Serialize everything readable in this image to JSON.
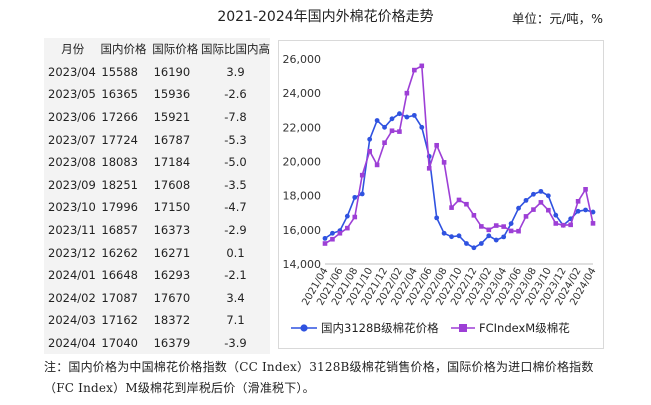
{
  "header": {
    "title": "2021-2024年国内外棉花价格走势",
    "unit": "单位：元/吨，%"
  },
  "table": {
    "headers": [
      "月份",
      "国内价格",
      "国际价格",
      "国际比国内高"
    ],
    "rows": [
      [
        "2023/04",
        "15588",
        "16190",
        "3.9"
      ],
      [
        "2023/05",
        "16365",
        "15936",
        "-2.6"
      ],
      [
        "2023/06",
        "17266",
        "15921",
        "-7.8"
      ],
      [
        "2023/07",
        "17724",
        "16787",
        "-5.3"
      ],
      [
        "2023/08",
        "18083",
        "17184",
        "-5.0"
      ],
      [
        "2023/09",
        "18251",
        "17608",
        "-3.5"
      ],
      [
        "2023/10",
        "17996",
        "17150",
        "-4.7"
      ],
      [
        "2023/11",
        "16857",
        "16373",
        "-2.9"
      ],
      [
        "2023/12",
        "16262",
        "16271",
        "0.1"
      ],
      [
        "2024/01",
        "16648",
        "16293",
        "-2.1"
      ],
      [
        "2024/02",
        "17087",
        "17670",
        "3.4"
      ],
      [
        "2024/03",
        "17162",
        "18372",
        "7.1"
      ],
      [
        "2024/04",
        "17040",
        "16379",
        "-3.9"
      ]
    ]
  },
  "note": "注：国内价格为中国棉花价格指数（CC Index）3128B级棉花销售价格，国际价格为进口棉价格指数（FC Index）M级棉花到岸税后价（滑准税下）。",
  "chart_data": {
    "type": "line",
    "title": "",
    "xlabel": "",
    "ylabel": "",
    "ylim": [
      14000,
      26000
    ],
    "yticks": [
      "14,000",
      "16,000",
      "18,000",
      "20,000",
      "22,000",
      "24,000",
      "26,000"
    ],
    "x": [
      "2021/04",
      "2021/05",
      "2021/06",
      "2021/07",
      "2021/08",
      "2021/09",
      "2021/10",
      "2021/11",
      "2021/12",
      "2022/01",
      "2022/02",
      "2022/03",
      "2022/04",
      "2022/05",
      "2022/06",
      "2022/07",
      "2022/08",
      "2022/09",
      "2022/10",
      "2022/11",
      "2022/12",
      "2023/01",
      "2023/02",
      "2023/03",
      "2023/04",
      "2023/05",
      "2023/06",
      "2023/07",
      "2023/08",
      "2023/09",
      "2023/10",
      "2023/11",
      "2023/12",
      "2024/01",
      "2024/02",
      "2024/03",
      "2024/04"
    ],
    "xticks": [
      "2021/04",
      "2021/06",
      "2021/08",
      "2021/10",
      "2021/12",
      "2022/02",
      "2022/04",
      "2022/06",
      "2022/08",
      "2022/10",
      "2022/12",
      "2023/02",
      "2023/04",
      "2023/06",
      "2023/08",
      "2023/10",
      "2023/12",
      "2024/02",
      "2024/04"
    ],
    "grid": false,
    "legend": "bottom",
    "series": [
      {
        "name": "国内3128B级棉花价格",
        "color": "#2f52e0",
        "marker": "circle",
        "values": [
          15500,
          15800,
          15950,
          16800,
          17900,
          18100,
          21300,
          22400,
          22000,
          22500,
          22800,
          22600,
          22700,
          22000,
          20300,
          16700,
          15800,
          15600,
          15650,
          15200,
          14950,
          15200,
          15650,
          15400,
          15588,
          16365,
          17266,
          17724,
          18083,
          18251,
          17996,
          16857,
          16262,
          16648,
          17087,
          17162,
          17040
        ]
      },
      {
        "name": "FCIndexM级棉花",
        "color": "#9d3fd6",
        "marker": "square",
        "values": [
          15200,
          15450,
          15800,
          16100,
          16750,
          19200,
          20600,
          19800,
          21100,
          21800,
          21750,
          24000,
          25350,
          25600,
          19600,
          20950,
          19950,
          17300,
          17750,
          17500,
          16850,
          16200,
          16000,
          16250,
          16190,
          15936,
          15921,
          16787,
          17184,
          17608,
          17150,
          16373,
          16271,
          16293,
          17670,
          18372,
          16379
        ]
      }
    ]
  }
}
